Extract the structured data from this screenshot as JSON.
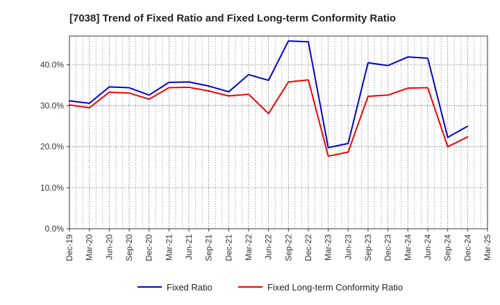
{
  "chart_data": {
    "type": "line",
    "title": "[7038]  Trend of Fixed Ratio and Fixed Long-term Conformity Ratio",
    "xlabel": "",
    "ylabel": "",
    "x_ticks": [
      "Dec-19",
      "Mar-20",
      "Jun-20",
      "Sep-20",
      "Dec-20",
      "Mar-21",
      "Jun-21",
      "Sep-21",
      "Dec-21",
      "Mar-22",
      "Jun-22",
      "Sep-22",
      "Dec-22",
      "Mar-23",
      "Jun-23",
      "Sep-23",
      "Dec-23",
      "Mar-24",
      "Jun-24",
      "Sep-24",
      "Dec-24",
      "Mar-25"
    ],
    "y_ticks": [
      "0.0%",
      "10.0%",
      "20.0%",
      "30.0%",
      "40.0%"
    ],
    "y_tick_values": [
      0,
      10,
      20,
      30,
      40
    ],
    "ylim": [
      0,
      47
    ],
    "grid": true,
    "legend_position": "bottom",
    "categories": [
      "Dec-19",
      "Mar-20",
      "Jun-20",
      "Sep-20",
      "Dec-20",
      "Mar-21",
      "Jun-21",
      "Sep-21",
      "Dec-21",
      "Mar-22",
      "Jun-22",
      "Sep-22",
      "Dec-22",
      "Mar-23",
      "Jun-23",
      "Sep-23",
      "Dec-23",
      "Mar-24",
      "Jun-24",
      "Sep-24",
      "Dec-24"
    ],
    "series": [
      {
        "name": "Fixed Ratio",
        "color": "#0000cc",
        "values": [
          31.2,
          30.6,
          34.6,
          34.4,
          32.6,
          35.7,
          35.8,
          34.8,
          33.4,
          37.6,
          36.2,
          45.8,
          45.6,
          19.8,
          20.8,
          40.5,
          39.8,
          41.9,
          41.6,
          22.3,
          25.0
        ]
      },
      {
        "name": "Fixed Long-term Conformity Ratio",
        "color": "#ee0000",
        "values": [
          30.2,
          29.5,
          33.3,
          33.1,
          31.6,
          34.4,
          34.5,
          33.6,
          32.4,
          32.8,
          28.1,
          35.8,
          36.3,
          17.7,
          18.7,
          32.3,
          32.6,
          34.3,
          34.4,
          20.0,
          22.4
        ]
      }
    ]
  }
}
